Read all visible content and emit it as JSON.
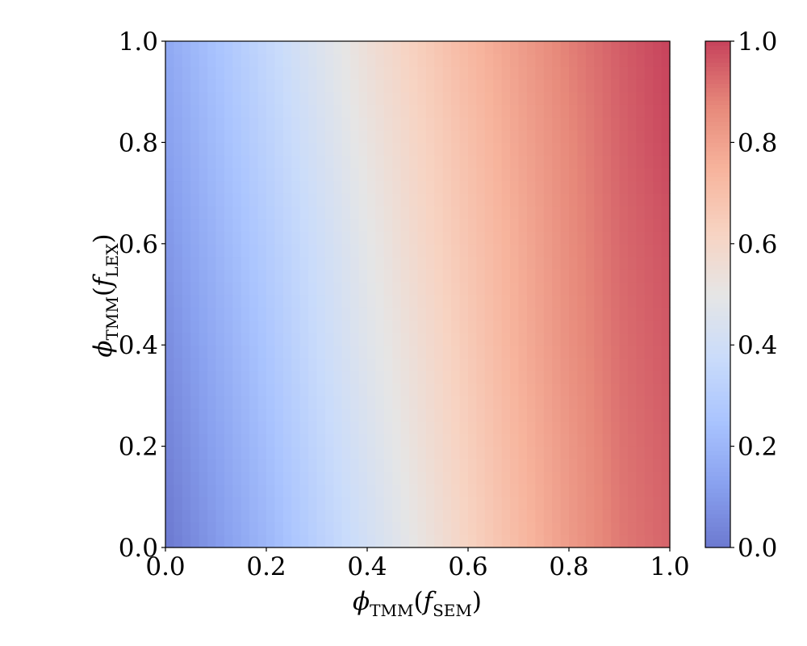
{
  "chart_data": {
    "type": "heatmap",
    "colormap": "coolwarm",
    "title": "",
    "xlabel": {
      "symbol": "ϕ",
      "symbol_sub": "TMM",
      "func": "f",
      "func_sub": "SEM"
    },
    "ylabel": {
      "symbol": "ϕ",
      "symbol_sub": "TMM",
      "func": "f",
      "func_sub": "LEX"
    },
    "xlim": [
      0.0,
      1.0
    ],
    "ylim": [
      0.0,
      1.0
    ],
    "x_ticks": [
      "0.0",
      "0.2",
      "0.4",
      "0.6",
      "0.8",
      "1.0"
    ],
    "y_ticks": [
      "0.0",
      "0.2",
      "0.4",
      "0.6",
      "0.8",
      "1.0"
    ],
    "colorbar": {
      "range": [
        0.0,
        1.0
      ],
      "ticks": [
        "0.0",
        "0.2",
        "0.4",
        "0.6",
        "0.8",
        "1.0"
      ]
    },
    "grid": false,
    "x_grid": [
      0.0,
      0.1,
      0.2,
      0.3,
      0.4,
      0.5,
      0.6,
      0.7,
      0.8,
      0.9,
      1.0
    ],
    "y_grid": [
      0.0,
      0.2,
      0.4,
      0.6,
      0.8,
      1.0
    ],
    "z": [
      [
        0.0,
        0.1,
        0.2,
        0.31,
        0.41,
        0.51,
        0.62,
        0.72,
        0.82,
        0.9,
        0.94
      ],
      [
        0.03,
        0.13,
        0.23,
        0.34,
        0.44,
        0.54,
        0.64,
        0.74,
        0.83,
        0.91,
        0.95
      ],
      [
        0.06,
        0.16,
        0.26,
        0.37,
        0.47,
        0.56,
        0.66,
        0.76,
        0.85,
        0.92,
        0.96
      ],
      [
        0.09,
        0.19,
        0.29,
        0.39,
        0.49,
        0.59,
        0.68,
        0.77,
        0.86,
        0.93,
        0.97
      ],
      [
        0.12,
        0.22,
        0.32,
        0.42,
        0.52,
        0.61,
        0.7,
        0.79,
        0.87,
        0.94,
        0.99
      ],
      [
        0.15,
        0.25,
        0.35,
        0.45,
        0.55,
        0.64,
        0.73,
        0.81,
        0.89,
        0.95,
        1.0
      ]
    ]
  }
}
